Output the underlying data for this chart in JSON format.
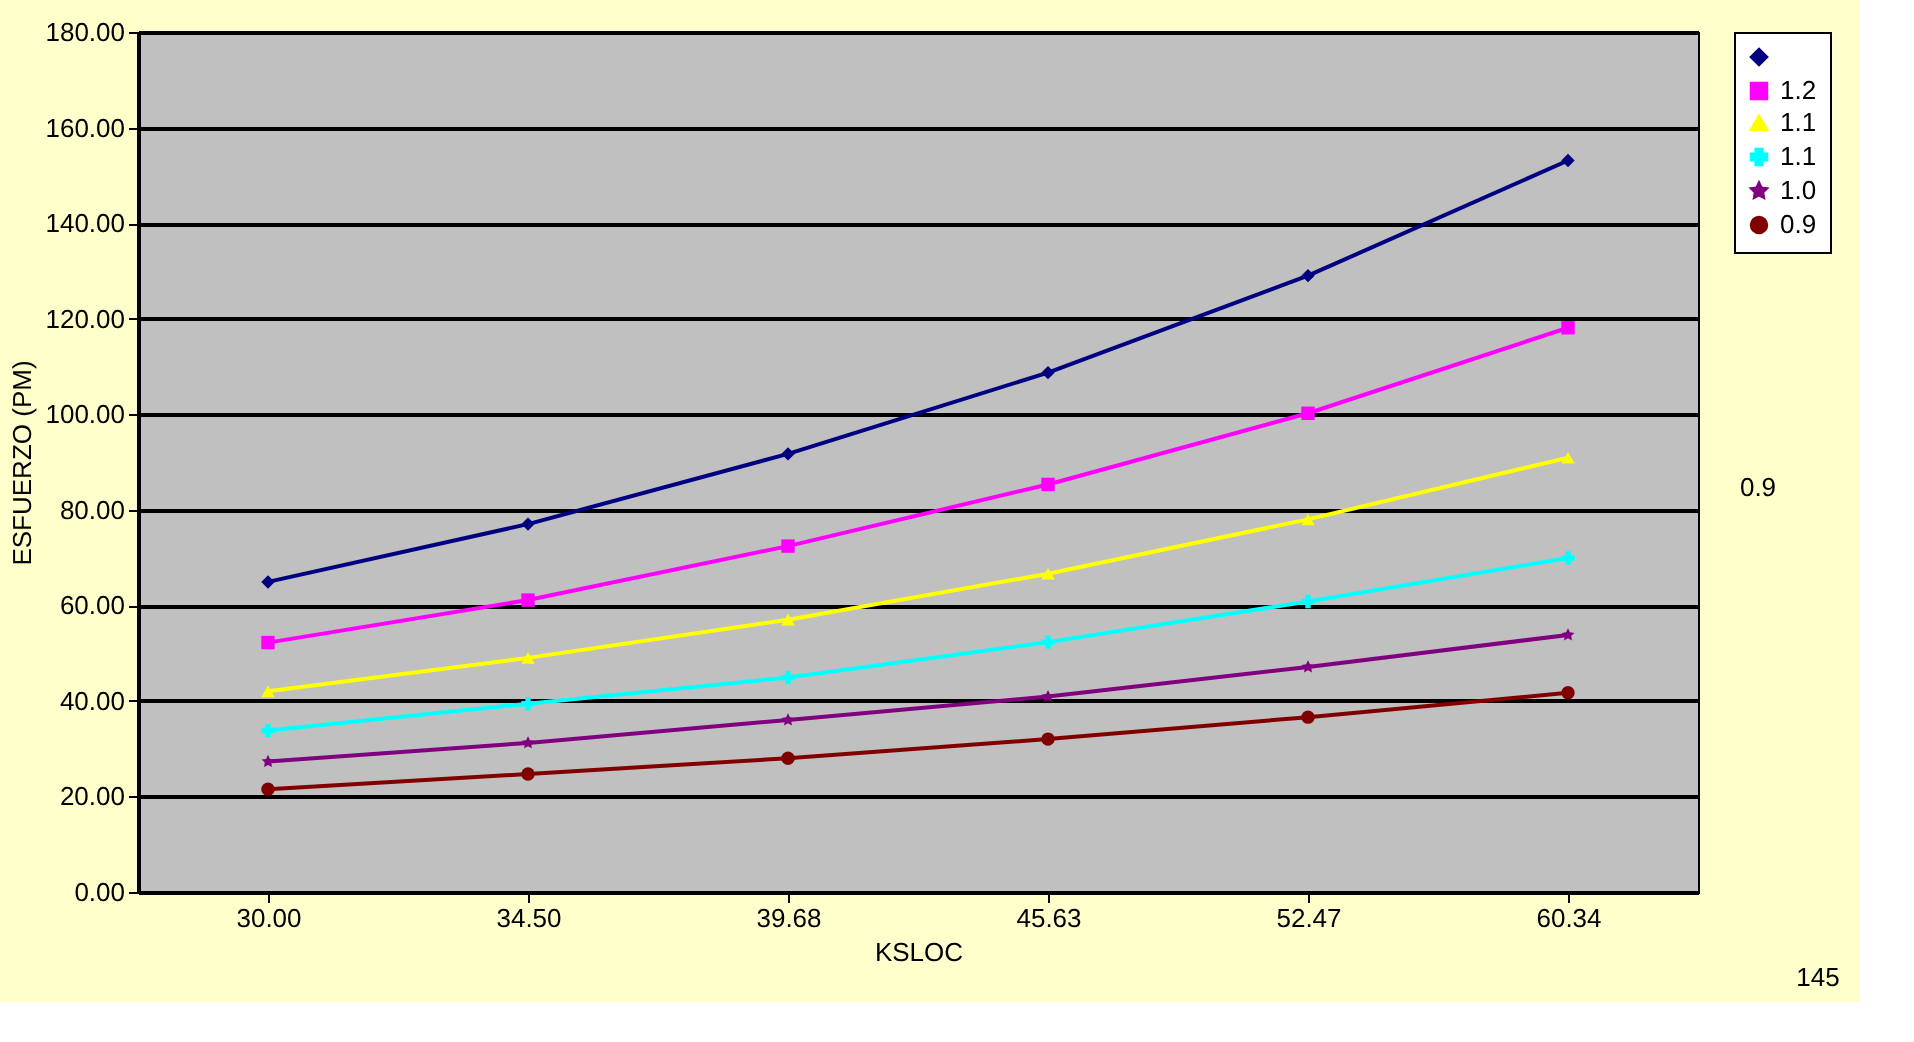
{
  "chart_data": {
    "type": "line",
    "xlabel": "KSLOC",
    "ylabel": "ESFUERZO (PM)",
    "categories": [
      "30.00",
      "34.50",
      "39.68",
      "45.63",
      "52.47",
      "60.34"
    ],
    "series": [
      {
        "name": null,
        "color": "#000080",
        "marker": "diamond",
        "values": [
          64.9,
          77.0,
          91.7,
          108.7,
          129.0,
          153.1
        ]
      },
      {
        "name": "1.2",
        "color": "#ff00ff",
        "marker": "square",
        "values": [
          52.2,
          61.1,
          72.4,
          85.3,
          100.2,
          118.1
        ]
      },
      {
        "name": "1.1",
        "color": "#ffff00",
        "marker": "triangle",
        "values": [
          42.0,
          49.0,
          57.0,
          66.6,
          78.0,
          90.9
        ]
      },
      {
        "name": "1.1",
        "color": "#00ffff",
        "marker": "cross",
        "values": [
          33.8,
          39.4,
          44.9,
          52.3,
          60.8,
          69.9
        ]
      },
      {
        "name": "1.0",
        "color": "#800080",
        "marker": "star",
        "values": [
          27.3,
          31.2,
          36.0,
          40.9,
          47.1,
          53.8
        ]
      },
      {
        "name": "0.9",
        "color": "#800000",
        "marker": "circle",
        "values": [
          21.5,
          24.7,
          28.0,
          32.0,
          36.6,
          41.7
        ]
      }
    ],
    "ylim": [
      0,
      180
    ],
    "yticks": [
      {
        "value": 0,
        "label": "0.00"
      },
      {
        "value": 20,
        "label": "20.00"
      },
      {
        "value": 40,
        "label": "40.00"
      },
      {
        "value": 60,
        "label": "60.00"
      },
      {
        "value": 80,
        "label": "80.00"
      },
      {
        "value": 100,
        "label": "100.00"
      },
      {
        "value": 120,
        "label": "120.00"
      },
      {
        "value": 140,
        "label": "140.00"
      },
      {
        "value": 160,
        "label": "160.00"
      },
      {
        "value": 180,
        "label": "180.00"
      }
    ],
    "grid": "y",
    "legend": "right",
    "line_style": "solid",
    "annotations": [
      "145",
      "0.9"
    ]
  }
}
